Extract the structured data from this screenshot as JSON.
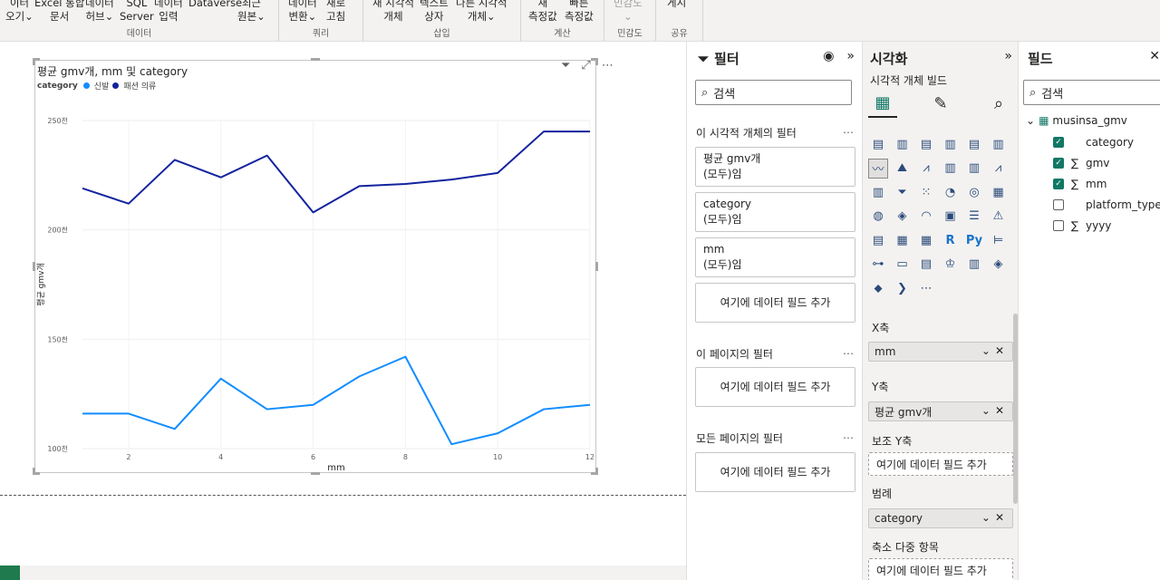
{
  "ribbon": {
    "groups": [
      {
        "label": "데이터",
        "buttons": [
          {
            "line1": "이터",
            "line2": "오기⌄"
          },
          {
            "line1": "Excel 통합",
            "line2": "문서"
          },
          {
            "line1": "데이터",
            "line2": "허브⌄"
          },
          {
            "line1": "SQL",
            "line2": "Server"
          },
          {
            "line1": "데이터",
            "line2": "입력"
          },
          {
            "line1": "Dataverse",
            "line2": ""
          },
          {
            "line1": "최근",
            "line2": "원본⌄"
          }
        ]
      },
      {
        "label": "쿼리",
        "buttons": [
          {
            "line1": "데이터",
            "line2": "변환⌄"
          },
          {
            "line1": "새로",
            "line2": "고침"
          }
        ]
      },
      {
        "label": "삽입",
        "buttons": [
          {
            "line1": "새 시각적",
            "line2": "개체"
          },
          {
            "line1": "텍스트",
            "line2": "상자"
          },
          {
            "line1": "다른 시각적",
            "line2": "개체⌄"
          }
        ]
      },
      {
        "label": "계산",
        "buttons": [
          {
            "line1": "새",
            "line2": "측정값"
          },
          {
            "line1": "빠른",
            "line2": "측정값"
          }
        ]
      },
      {
        "label": "민감도",
        "buttons": [
          {
            "line1": "민감도",
            "line2": "⌄"
          }
        ]
      },
      {
        "label": "공유",
        "buttons": [
          {
            "line1": "게시",
            "line2": ""
          }
        ]
      }
    ]
  },
  "visual": {
    "title": "평균 gmv개, mm 및 category",
    "legend_title": "category",
    "legend_items": [
      "신발",
      "패션 의류"
    ]
  },
  "chart_data": {
    "type": "line",
    "title": "평균 gmv개, mm 및 category",
    "xlabel": "mm",
    "ylabel": "평균 gmv개",
    "x": [
      1,
      2,
      3,
      4,
      5,
      6,
      7,
      8,
      9,
      10,
      11,
      12
    ],
    "x_ticks": [
      "2",
      "4",
      "6",
      "8",
      "10",
      "12"
    ],
    "x_tick_values": [
      2,
      4,
      6,
      8,
      10,
      12
    ],
    "y_ticks": [
      "100천",
      "150천",
      "200천",
      "250천"
    ],
    "y_tick_values": [
      100000,
      150000,
      200000,
      250000
    ],
    "ylim": [
      100000,
      250000
    ],
    "xlim": [
      1,
      12
    ],
    "grid": true,
    "series": [
      {
        "name": "패션 의류",
        "color": "#12239e",
        "values": [
          219000,
          212000,
          232000,
          224000,
          234000,
          208000,
          220000,
          221000,
          223000,
          226000,
          245000,
          245000
        ]
      },
      {
        "name": "신발",
        "color": "#118dff",
        "values": [
          116000,
          116000,
          109000,
          132000,
          118000,
          120000,
          133000,
          142000,
          102000,
          107000,
          118000,
          120000
        ]
      }
    ]
  },
  "filter_pane": {
    "title": "필터",
    "search_placeholder": "검색",
    "visual_section": "이 시각적 개체의 필터",
    "cards": [
      {
        "field": "평균 gmv개",
        "state": "(모두)임"
      },
      {
        "field": "category",
        "state": "(모두)임"
      },
      {
        "field": "mm",
        "state": "(모두)임"
      }
    ],
    "add_label": "여기에 데이터 필드 추가",
    "page_section": "이 페이지의 필터",
    "all_pages_section": "모든 페이지의 필터"
  },
  "viz_pane": {
    "title": "시각화",
    "build_label": "시각적 개체 빌드",
    "x_axis_label": "X축",
    "x_axis_field": "mm",
    "y_axis_label": "Y축",
    "y_axis_field": "평균 gmv개",
    "secondary_y_label": "보조 Y축",
    "legend_label": "범례",
    "legend_field": "category",
    "small_multiples_label": "축소 다중 항목",
    "add_label": "여기에 데이터 필드 추가"
  },
  "fields_pane": {
    "title": "필드",
    "search_placeholder": "검색",
    "table_name": "musinsa_gmv",
    "fields": [
      {
        "name": "category",
        "checked": true,
        "sigma": false
      },
      {
        "name": "gmv",
        "checked": true,
        "sigma": true
      },
      {
        "name": "mm",
        "checked": true,
        "sigma": true
      },
      {
        "name": "platform_type",
        "checked": false,
        "sigma": false
      },
      {
        "name": "yyyy",
        "checked": false,
        "sigma": true
      }
    ]
  }
}
